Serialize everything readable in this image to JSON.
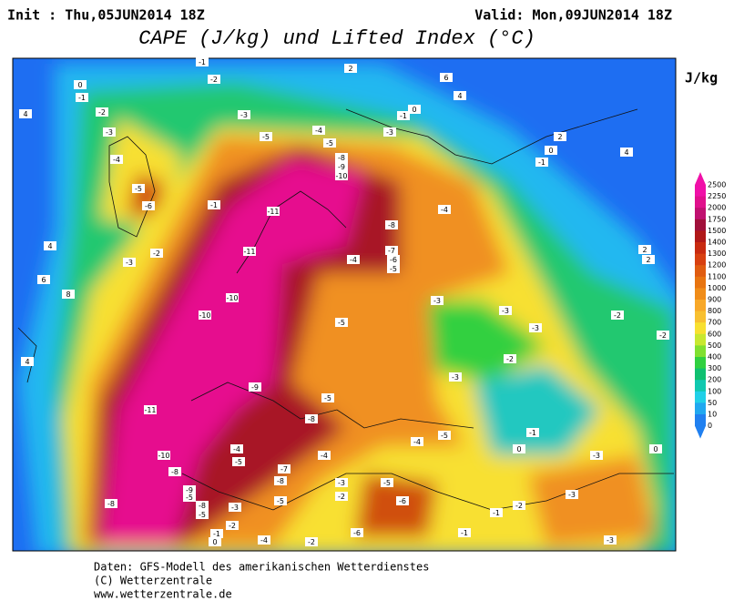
{
  "header": {
    "init": "Init : Thu,05JUN2014 18Z",
    "valid": "Valid: Mon,09JUN2014 18Z",
    "title": "CAPE (J/kg) und Lifted Index (°C)"
  },
  "legend": {
    "unit": "J/kg",
    "levels": [
      2500,
      2250,
      2000,
      1750,
      1500,
      1400,
      1300,
      1200,
      1100,
      1000,
      900,
      800,
      700,
      600,
      500,
      400,
      300,
      200,
      100,
      50,
      10,
      0
    ],
    "colors": [
      "#f010a8",
      "#e0108c",
      "#c01070",
      "#a0103a",
      "#b01818",
      "#c82a10",
      "#d84010",
      "#e05c10",
      "#e87410",
      "#f08c18",
      "#f8a828",
      "#f8c030",
      "#f8e030",
      "#c8e830",
      "#80e030",
      "#30d040",
      "#10c070",
      "#10c8b0",
      "#20d0e8",
      "#20a8f0",
      "#2080f0"
    ]
  },
  "contour_labels": [
    "-1",
    "-2",
    "2",
    "6",
    "4",
    "0",
    "-1",
    "-2",
    "4",
    "-3",
    "-3",
    "-4",
    "-5",
    "-6",
    "-1",
    "-5",
    "-4",
    "-5",
    "-8",
    "-9",
    "-10",
    "-1",
    "-3",
    "0",
    "2",
    "0",
    "-1",
    "4",
    "-11",
    "-8",
    "-4",
    "-11",
    "-7",
    "-6",
    "-5",
    "-4",
    "-10",
    "-10",
    "-5",
    "-3",
    "-3",
    "-3",
    "-2",
    "-2",
    "-3",
    "-11",
    "-9",
    "-5",
    "-8",
    "-10",
    "-8",
    "-4",
    "-5",
    "-7",
    "-8",
    "-5",
    "-9",
    "-5",
    "-8",
    "-8",
    "-5",
    "-3",
    "-3",
    "-2",
    "-5",
    "-6",
    "-4",
    "-4",
    "-5",
    "-1",
    "0",
    "-3",
    "0",
    "-3",
    "-2",
    "-1",
    "-1",
    "-6",
    "-2",
    "-4",
    "-2",
    "-1",
    "0",
    "-3",
    "2",
    "2",
    "6",
    "8",
    "4",
    "4",
    "-3",
    "-2",
    "-2"
  ],
  "footer": [
    "Daten: GFS-Modell des amerikanischen Wetterdienstes",
    "(C) Wetterzentrale",
    "www.wetterzentrale.de"
  ]
}
